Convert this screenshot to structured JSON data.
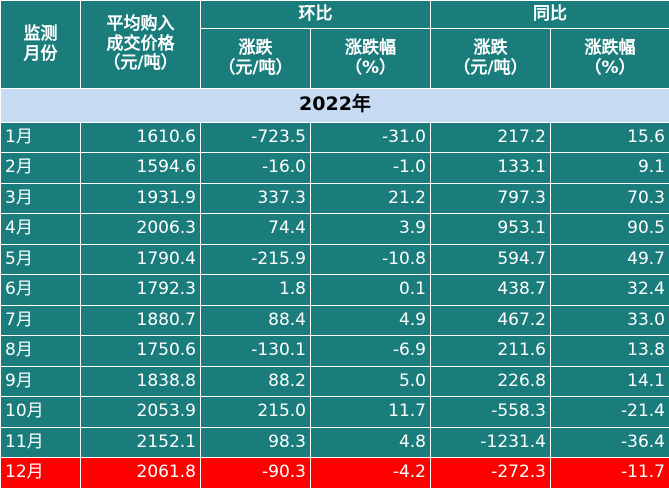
{
  "header": {
    "month": [
      "监测",
      "月份"
    ],
    "price": [
      "平均购入",
      "成交价格",
      "（元/吨）"
    ],
    "mom": "环比",
    "yoy": "同比",
    "sub": [
      [
        "涨跌",
        "（元/吨）"
      ],
      [
        "涨跌幅",
        "（%）"
      ],
      [
        "涨跌",
        "（元/吨）"
      ],
      [
        "涨跌幅",
        "（%）"
      ]
    ]
  },
  "section": "2022年",
  "rows": [
    [
      "1月",
      "1610.6",
      "-723.5",
      "-31.0",
      "217.2",
      "15.6"
    ],
    [
      "2月",
      "1594.6",
      "-16.0",
      "-1.0",
      "133.1",
      "9.1"
    ],
    [
      "3月",
      "1931.9",
      "337.3",
      "21.2",
      "797.3",
      "70.3"
    ],
    [
      "4月",
      "2006.3",
      "74.4",
      "3.9",
      "953.1",
      "90.5"
    ],
    [
      "5月",
      "1790.4",
      "-215.9",
      "-10.8",
      "594.7",
      "49.7"
    ],
    [
      "6月",
      "1792.3",
      "1.8",
      "0.1",
      "438.7",
      "32.4"
    ],
    [
      "7月",
      "1880.7",
      "88.4",
      "4.9",
      "467.2",
      "33.0"
    ],
    [
      "8月",
      "1750.6",
      "-130.1",
      "-6.9",
      "211.6",
      "13.8"
    ],
    [
      "9月",
      "1838.8",
      "88.2",
      "5.0",
      "226.8",
      "14.1"
    ],
    [
      "10月",
      "2053.9",
      "215.0",
      "11.7",
      "-558.3",
      "-21.4"
    ],
    [
      "11月",
      "2152.1",
      "98.3",
      "4.8",
      "-1231.4",
      "-36.4"
    ],
    [
      "12月",
      "2061.8",
      "-90.3",
      "-4.2",
      "-272.3",
      "-11.7"
    ]
  ]
}
